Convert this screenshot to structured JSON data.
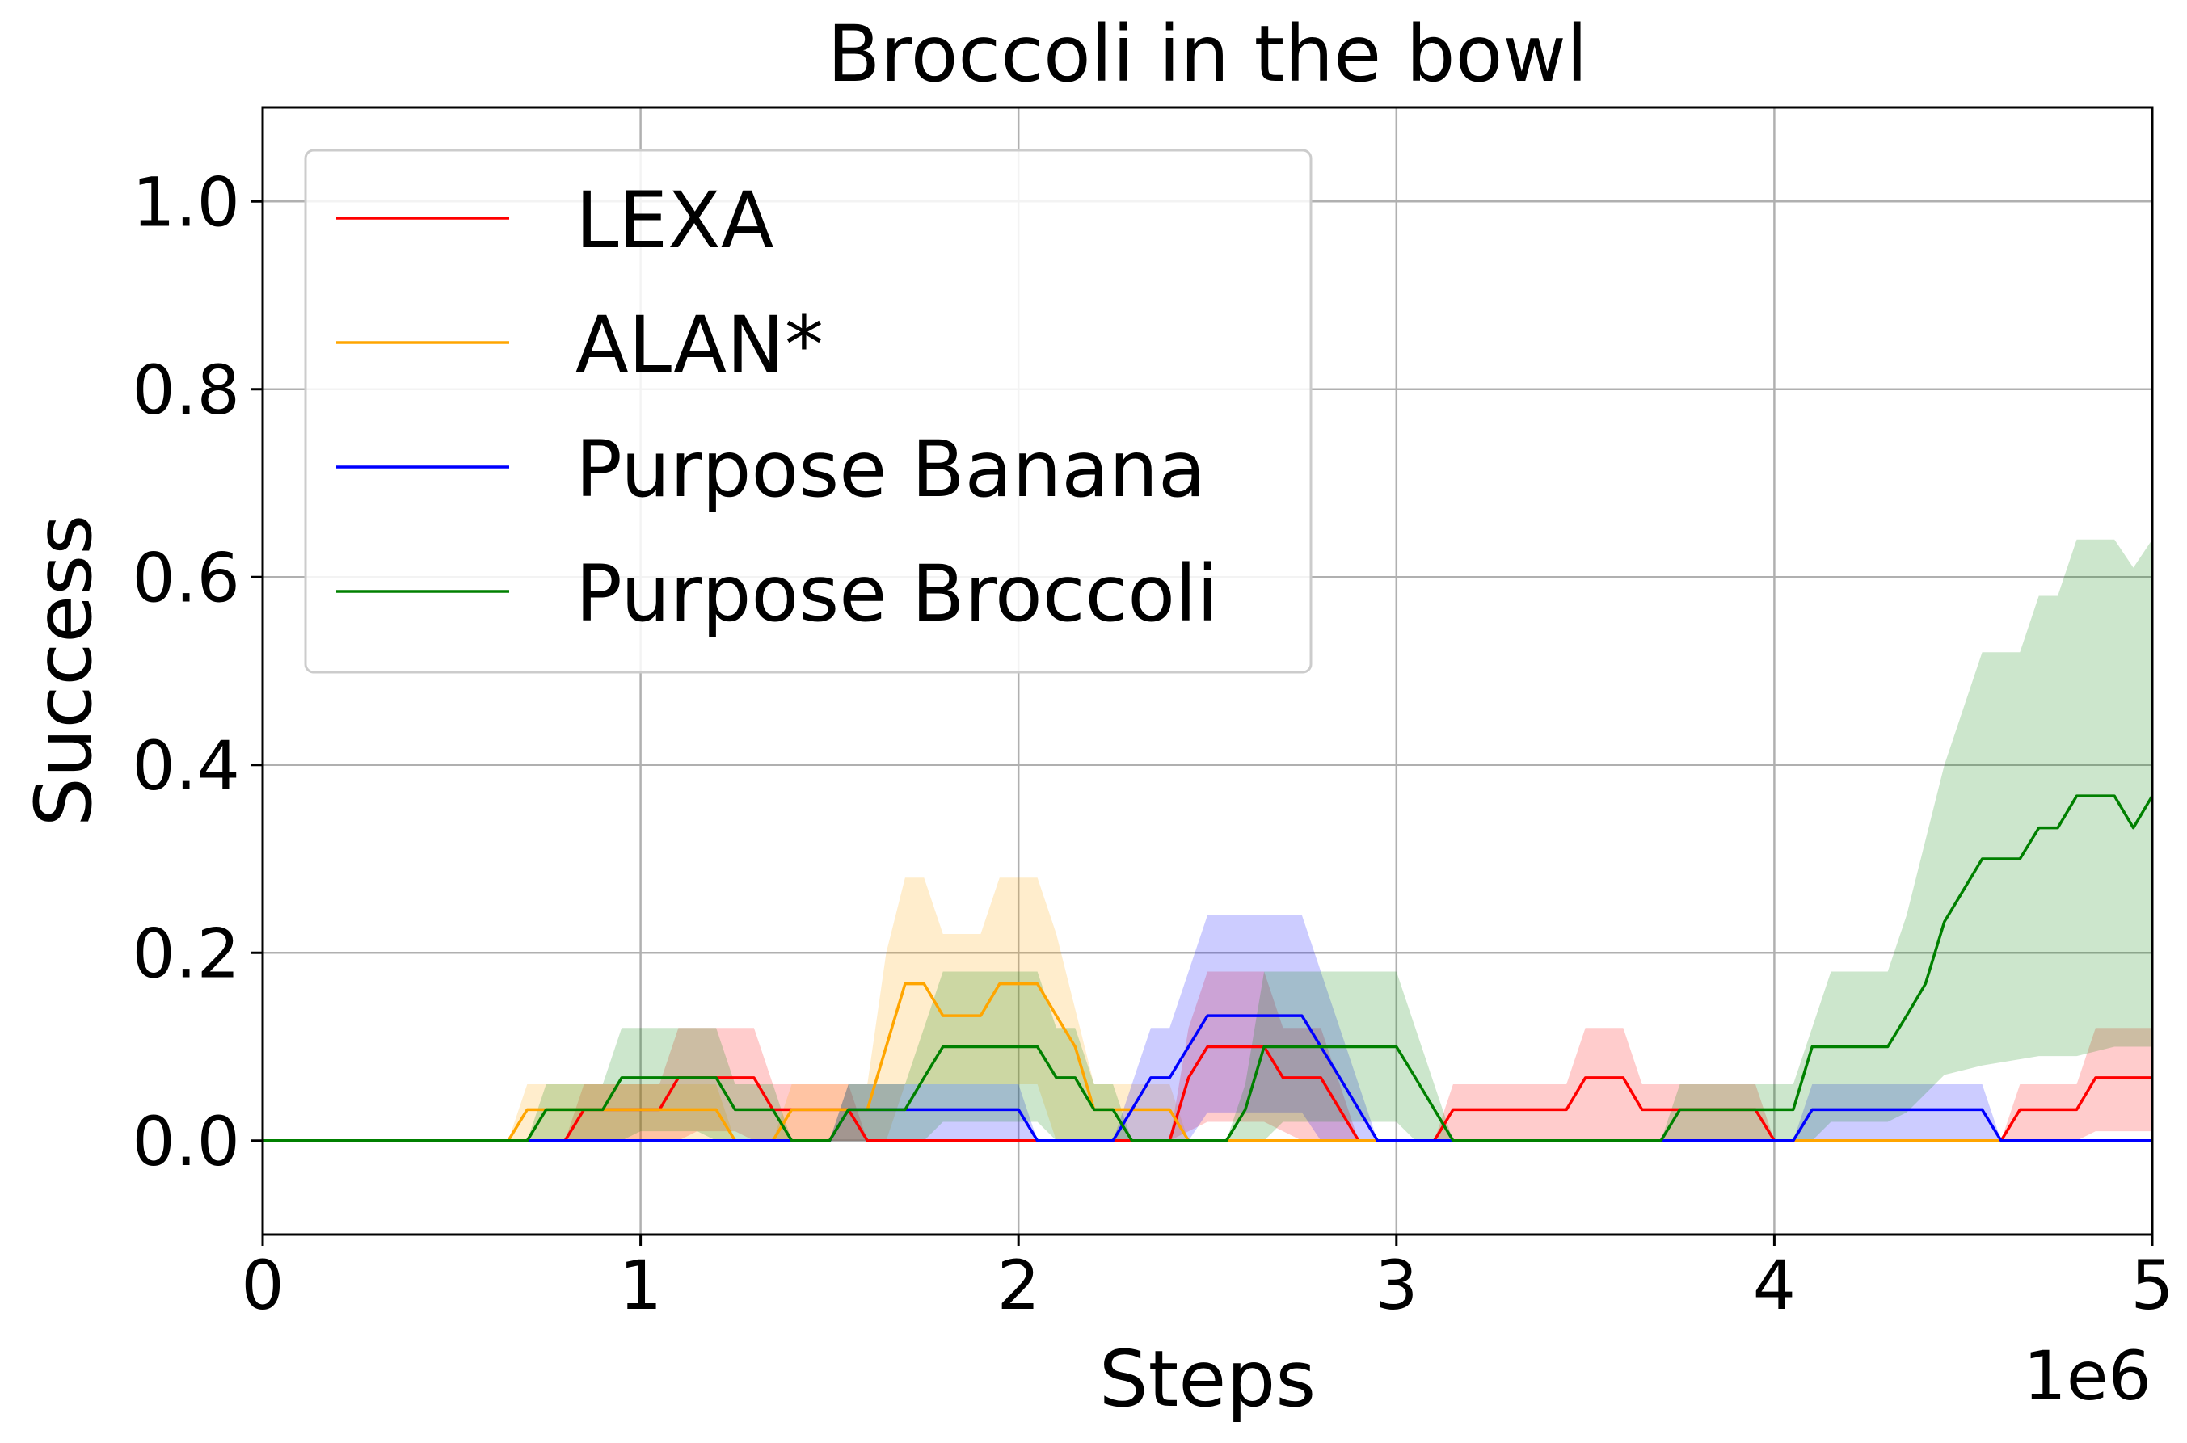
{
  "chart_data": {
    "type": "line",
    "title": "Broccoli in the bowl",
    "xlabel": "Steps",
    "ylabel": "Success",
    "x_offset_label": "1e6",
    "xlim": [
      0,
      5
    ],
    "ylim": [
      -0.1,
      1.1
    ],
    "xticks": [
      0,
      1,
      2,
      3,
      4,
      5
    ],
    "xtick_labels": [
      "0",
      "1",
      "2",
      "3",
      "4",
      "5"
    ],
    "yticks": [
      0.0,
      0.2,
      0.4,
      0.6,
      0.8,
      1.0
    ],
    "ytick_labels": [
      "0.0",
      "0.2",
      "0.4",
      "0.6",
      "0.8",
      "1.0"
    ],
    "grid": true,
    "legend_position": "upper-left",
    "series": [
      {
        "name": "LEXA",
        "color": "#ff0000",
        "mean": [
          [
            0,
            0
          ],
          [
            0.8,
            0
          ],
          [
            0.85,
            0.033
          ],
          [
            1.05,
            0.033
          ],
          [
            1.1,
            0.067
          ],
          [
            1.3,
            0.067
          ],
          [
            1.35,
            0.033
          ],
          [
            1.55,
            0.033
          ],
          [
            1.6,
            0
          ],
          [
            2.4,
            0
          ],
          [
            2.45,
            0.067
          ],
          [
            2.5,
            0.1
          ],
          [
            2.65,
            0.1
          ],
          [
            2.7,
            0.067
          ],
          [
            2.8,
            0.067
          ],
          [
            2.9,
            0
          ],
          [
            3.1,
            0
          ],
          [
            3.15,
            0.033
          ],
          [
            3.45,
            0.033
          ],
          [
            3.5,
            0.067
          ],
          [
            3.6,
            0.067
          ],
          [
            3.65,
            0.033
          ],
          [
            3.95,
            0.033
          ],
          [
            4.0,
            0
          ],
          [
            4.6,
            0
          ],
          [
            4.65,
            0.033
          ],
          [
            4.8,
            0.033
          ],
          [
            4.85,
            0.067
          ],
          [
            5.0,
            0.067
          ]
        ],
        "upper": [
          [
            0,
            0
          ],
          [
            0.8,
            0
          ],
          [
            0.85,
            0.06
          ],
          [
            1.05,
            0.06
          ],
          [
            1.1,
            0.12
          ],
          [
            1.3,
            0.12
          ],
          [
            1.35,
            0.06
          ],
          [
            1.55,
            0.06
          ],
          [
            1.6,
            0
          ],
          [
            2.4,
            0
          ],
          [
            2.45,
            0.12
          ],
          [
            2.5,
            0.18
          ],
          [
            2.65,
            0.18
          ],
          [
            2.7,
            0.12
          ],
          [
            2.8,
            0.12
          ],
          [
            2.9,
            0
          ],
          [
            3.1,
            0
          ],
          [
            3.15,
            0.06
          ],
          [
            3.45,
            0.06
          ],
          [
            3.5,
            0.12
          ],
          [
            3.6,
            0.12
          ],
          [
            3.65,
            0.06
          ],
          [
            3.95,
            0.06
          ],
          [
            4.0,
            0
          ],
          [
            4.6,
            0
          ],
          [
            4.65,
            0.06
          ],
          [
            4.8,
            0.06
          ],
          [
            4.85,
            0.12
          ],
          [
            5.0,
            0.12
          ]
        ],
        "lower": [
          [
            0,
            0
          ],
          [
            1.1,
            0
          ],
          [
            1.15,
            0.01
          ],
          [
            1.25,
            0.01
          ],
          [
            1.3,
            0
          ],
          [
            2.4,
            0
          ],
          [
            2.5,
            0.02
          ],
          [
            2.65,
            0.02
          ],
          [
            2.75,
            0
          ],
          [
            4.8,
            0
          ],
          [
            4.85,
            0.01
          ],
          [
            5.0,
            0.01
          ]
        ]
      },
      {
        "name": "ALAN*",
        "color": "#ffa500",
        "mean": [
          [
            0,
            0
          ],
          [
            0.65,
            0
          ],
          [
            0.7,
            0.033
          ],
          [
            1.2,
            0.033
          ],
          [
            1.25,
            0
          ],
          [
            1.35,
            0
          ],
          [
            1.4,
            0.033
          ],
          [
            1.6,
            0.033
          ],
          [
            1.65,
            0.1
          ],
          [
            1.7,
            0.167
          ],
          [
            1.75,
            0.167
          ],
          [
            1.8,
            0.133
          ],
          [
            1.9,
            0.133
          ],
          [
            1.95,
            0.167
          ],
          [
            2.05,
            0.167
          ],
          [
            2.1,
            0.133
          ],
          [
            2.15,
            0.1
          ],
          [
            2.2,
            0.033
          ],
          [
            2.4,
            0.033
          ],
          [
            2.45,
            0
          ],
          [
            5.0,
            0
          ]
        ],
        "upper": [
          [
            0,
            0
          ],
          [
            0.65,
            0
          ],
          [
            0.7,
            0.06
          ],
          [
            1.2,
            0.06
          ],
          [
            1.25,
            0
          ],
          [
            1.35,
            0
          ],
          [
            1.4,
            0.06
          ],
          [
            1.6,
            0.06
          ],
          [
            1.65,
            0.2
          ],
          [
            1.7,
            0.28
          ],
          [
            1.75,
            0.28
          ],
          [
            1.8,
            0.22
          ],
          [
            1.9,
            0.22
          ],
          [
            1.95,
            0.28
          ],
          [
            2.05,
            0.28
          ],
          [
            2.1,
            0.22
          ],
          [
            2.2,
            0.06
          ],
          [
            2.4,
            0.06
          ],
          [
            2.45,
            0
          ],
          [
            5.0,
            0
          ]
        ],
        "lower": [
          [
            0,
            0
          ],
          [
            1.65,
            0
          ],
          [
            1.7,
            0.06
          ],
          [
            2.05,
            0.06
          ],
          [
            2.1,
            0
          ],
          [
            5.0,
            0
          ]
        ]
      },
      {
        "name": "Purpose Banana",
        "color": "#0000ff",
        "mean": [
          [
            0,
            0
          ],
          [
            1.5,
            0
          ],
          [
            1.55,
            0.033
          ],
          [
            2.0,
            0.033
          ],
          [
            2.05,
            0
          ],
          [
            2.25,
            0
          ],
          [
            2.3,
            0.033
          ],
          [
            2.35,
            0.067
          ],
          [
            2.4,
            0.067
          ],
          [
            2.5,
            0.133
          ],
          [
            2.75,
            0.133
          ],
          [
            2.8,
            0.1
          ],
          [
            2.85,
            0.067
          ],
          [
            2.95,
            0
          ],
          [
            4.05,
            0
          ],
          [
            4.1,
            0.033
          ],
          [
            4.55,
            0.033
          ],
          [
            4.6,
            0
          ],
          [
            5.0,
            0
          ]
        ],
        "upper": [
          [
            0,
            0
          ],
          [
            1.5,
            0
          ],
          [
            1.55,
            0.06
          ],
          [
            2.0,
            0.06
          ],
          [
            2.05,
            0
          ],
          [
            2.25,
            0
          ],
          [
            2.3,
            0.06
          ],
          [
            2.35,
            0.12
          ],
          [
            2.4,
            0.12
          ],
          [
            2.5,
            0.24
          ],
          [
            2.75,
            0.24
          ],
          [
            2.8,
            0.18
          ],
          [
            2.95,
            0
          ],
          [
            4.05,
            0
          ],
          [
            4.1,
            0.06
          ],
          [
            4.55,
            0.06
          ],
          [
            4.6,
            0
          ],
          [
            5.0,
            0
          ]
        ],
        "lower": [
          [
            0,
            0
          ],
          [
            2.45,
            0
          ],
          [
            2.5,
            0.03
          ],
          [
            2.75,
            0.03
          ],
          [
            2.8,
            0
          ],
          [
            5.0,
            0
          ]
        ]
      },
      {
        "name": "Purpose Broccoli",
        "color": "#008000",
        "mean": [
          [
            0,
            0
          ],
          [
            0.7,
            0
          ],
          [
            0.75,
            0.033
          ],
          [
            0.9,
            0.033
          ],
          [
            0.95,
            0.067
          ],
          [
            1.2,
            0.067
          ],
          [
            1.25,
            0.033
          ],
          [
            1.35,
            0.033
          ],
          [
            1.4,
            0
          ],
          [
            1.5,
            0
          ],
          [
            1.55,
            0.033
          ],
          [
            1.7,
            0.033
          ],
          [
            1.75,
            0.067
          ],
          [
            1.8,
            0.1
          ],
          [
            2.0,
            0.1
          ],
          [
            2.05,
            0.1
          ],
          [
            2.1,
            0.067
          ],
          [
            2.15,
            0.067
          ],
          [
            2.2,
            0.033
          ],
          [
            2.25,
            0.033
          ],
          [
            2.3,
            0
          ],
          [
            2.55,
            0
          ],
          [
            2.6,
            0.033
          ],
          [
            2.65,
            0.1
          ],
          [
            3.0,
            0.1
          ],
          [
            3.05,
            0.067
          ],
          [
            3.15,
            0
          ],
          [
            3.7,
            0
          ],
          [
            3.75,
            0.033
          ],
          [
            4.05,
            0.033
          ],
          [
            4.1,
            0.1
          ],
          [
            4.3,
            0.1
          ],
          [
            4.35,
            0.133
          ],
          [
            4.4,
            0.167
          ],
          [
            4.45,
            0.233
          ],
          [
            4.55,
            0.3
          ],
          [
            4.65,
            0.3
          ],
          [
            4.7,
            0.333
          ],
          [
            4.75,
            0.333
          ],
          [
            4.8,
            0.367
          ],
          [
            4.9,
            0.367
          ],
          [
            4.95,
            0.333
          ],
          [
            5.0,
            0.367
          ]
        ],
        "upper": [
          [
            0,
            0
          ],
          [
            0.7,
            0
          ],
          [
            0.75,
            0.06
          ],
          [
            0.9,
            0.06
          ],
          [
            0.95,
            0.12
          ],
          [
            1.2,
            0.12
          ],
          [
            1.25,
            0.06
          ],
          [
            1.35,
            0.06
          ],
          [
            1.4,
            0
          ],
          [
            1.5,
            0
          ],
          [
            1.55,
            0.06
          ],
          [
            1.7,
            0.06
          ],
          [
            1.75,
            0.12
          ],
          [
            1.8,
            0.18
          ],
          [
            2.05,
            0.18
          ],
          [
            2.1,
            0.12
          ],
          [
            2.15,
            0.12
          ],
          [
            2.2,
            0.06
          ],
          [
            2.25,
            0.06
          ],
          [
            2.3,
            0
          ],
          [
            2.55,
            0
          ],
          [
            2.6,
            0.06
          ],
          [
            2.65,
            0.18
          ],
          [
            3.0,
            0.18
          ],
          [
            3.05,
            0.12
          ],
          [
            3.15,
            0
          ],
          [
            3.7,
            0
          ],
          [
            3.75,
            0.06
          ],
          [
            4.05,
            0.06
          ],
          [
            4.15,
            0.18
          ],
          [
            4.3,
            0.18
          ],
          [
            4.35,
            0.24
          ],
          [
            4.45,
            0.4
          ],
          [
            4.55,
            0.52
          ],
          [
            4.65,
            0.52
          ],
          [
            4.7,
            0.58
          ],
          [
            4.75,
            0.58
          ],
          [
            4.8,
            0.64
          ],
          [
            4.9,
            0.64
          ],
          [
            4.95,
            0.61
          ],
          [
            5.0,
            0.64
          ]
        ],
        "lower": [
          [
            0,
            0
          ],
          [
            0.95,
            0
          ],
          [
            1.0,
            0.01
          ],
          [
            1.15,
            0.01
          ],
          [
            1.2,
            0
          ],
          [
            1.75,
            0
          ],
          [
            1.8,
            0.02
          ],
          [
            2.05,
            0.02
          ],
          [
            2.1,
            0
          ],
          [
            2.65,
            0
          ],
          [
            2.7,
            0.02
          ],
          [
            3.0,
            0.02
          ],
          [
            3.05,
            0
          ],
          [
            4.1,
            0
          ],
          [
            4.15,
            0.02
          ],
          [
            4.3,
            0.02
          ],
          [
            4.35,
            0.03
          ],
          [
            4.45,
            0.07
          ],
          [
            4.55,
            0.08
          ],
          [
            4.7,
            0.09
          ],
          [
            4.8,
            0.09
          ],
          [
            4.9,
            0.1
          ],
          [
            5.0,
            0.1
          ]
        ]
      }
    ]
  }
}
